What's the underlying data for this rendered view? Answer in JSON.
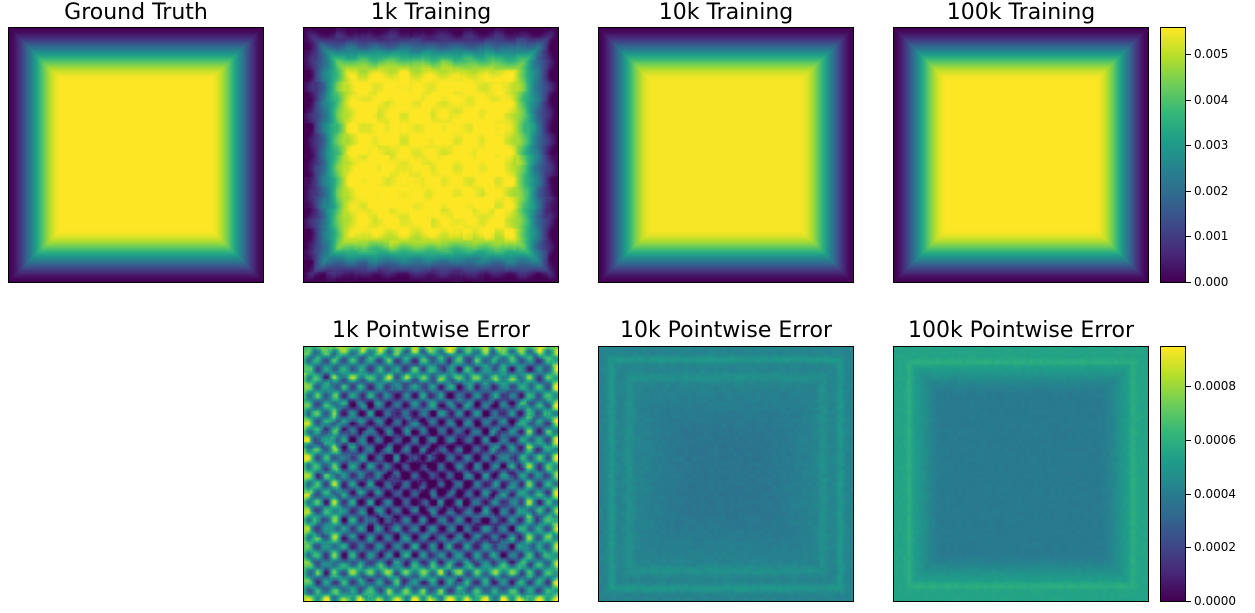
{
  "chart_data": [
    {
      "type": "heatmap",
      "title": "Ground Truth",
      "field": "solution"
    },
    {
      "type": "heatmap",
      "title": "1k Training",
      "field": "solution"
    },
    {
      "type": "heatmap",
      "title": "10k Training",
      "field": "solution"
    },
    {
      "type": "heatmap",
      "title": "100k Training",
      "field": "solution"
    },
    {
      "type": "heatmap",
      "title": "1k Pointwise Error",
      "field": "error"
    },
    {
      "type": "heatmap",
      "title": "10k Pointwise Error",
      "field": "error"
    },
    {
      "type": "heatmap",
      "title": "100k Pointwise Error",
      "field": "error"
    }
  ],
  "colorbars": {
    "solution": {
      "colormap": "viridis",
      "range": [
        0,
        0.0056
      ],
      "ticks": [
        0.0,
        0.001,
        0.002,
        0.003,
        0.004,
        0.005
      ],
      "tick_labels": [
        "0.000",
        "0.001",
        "0.002",
        "0.003",
        "0.004",
        "0.005"
      ]
    },
    "error": {
      "colormap": "viridis",
      "range": [
        0,
        0.00095
      ],
      "ticks": [
        0.0,
        0.0002,
        0.0004,
        0.0006,
        0.0008
      ],
      "tick_labels": [
        "0.0000",
        "0.0002",
        "0.0004",
        "0.0006",
        "0.0008"
      ]
    }
  }
}
